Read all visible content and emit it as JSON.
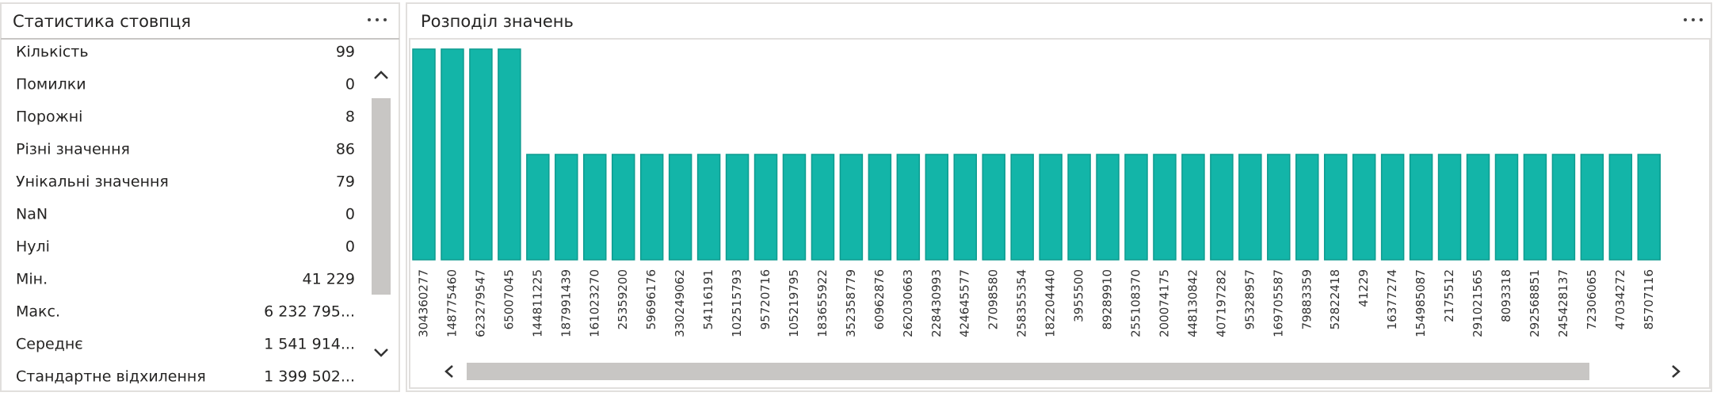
{
  "stats_panel": {
    "title": "Статистика стовпця",
    "rows": [
      {
        "label": "Кількість",
        "value": "99"
      },
      {
        "label": "Помилки",
        "value": "0"
      },
      {
        "label": "Порожні",
        "value": "8"
      },
      {
        "label": "Різні значення",
        "value": "86"
      },
      {
        "label": "Унікальні значення",
        "value": "79"
      },
      {
        "label": "NaN",
        "value": "0"
      },
      {
        "label": "Нулі",
        "value": "0"
      },
      {
        "label": "Мін.",
        "value": "41 229"
      },
      {
        "label": "Макс.",
        "value": "6 232 795..."
      },
      {
        "label": "Середнє",
        "value": "1 541 914..."
      },
      {
        "label": "Стандартне відхилення",
        "value": "1 399 502..."
      }
    ]
  },
  "chart_data": {
    "type": "bar",
    "title": "Розподіл значень",
    "color": "#13b5a8",
    "categories": [
      "304360277",
      "148775460",
      "623279547",
      "65007045",
      "144811225",
      "187991439",
      "161023270",
      "25359200",
      "59696176",
      "330249062",
      "54116191",
      "102515793",
      "95720716",
      "105219795",
      "183655922",
      "352358779",
      "60962876",
      "262030663",
      "228430993",
      "424645577",
      "27098580",
      "258355354",
      "182204440",
      "3955500",
      "89289910",
      "255108370",
      "200074175",
      "448130842",
      "407197282",
      "95328957",
      "169705587",
      "79883359",
      "52822418",
      "41229",
      "16377274",
      "154985087",
      "2175512",
      "291021565",
      "8093318",
      "292568851",
      "245428137",
      "72306065",
      "47034272",
      "85707116"
    ],
    "values": [
      2,
      2,
      2,
      2,
      1,
      1,
      1,
      1,
      1,
      1,
      1,
      1,
      1,
      1,
      1,
      1,
      1,
      1,
      1,
      1,
      1,
      1,
      1,
      1,
      1,
      1,
      1,
      1,
      1,
      1,
      1,
      1,
      1,
      1,
      1,
      1,
      1,
      1,
      1,
      1,
      1,
      1,
      1,
      1
    ]
  }
}
